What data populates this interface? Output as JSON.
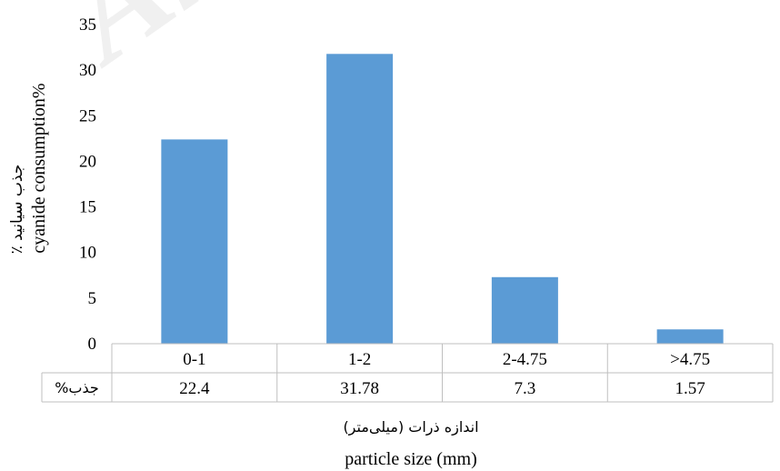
{
  "watermark": "Arc",
  "chart_data": {
    "type": "bar",
    "categories": [
      "0-1",
      "1-2",
      "2-4.75",
      ">4.75"
    ],
    "values": [
      22.4,
      31.78,
      7.3,
      1.57
    ],
    "table_values": [
      "22.4",
      "31.78",
      "7.3",
      "1.57"
    ],
    "table_row_label": "%جذب",
    "ylim": [
      0,
      35
    ],
    "yticks": [
      0,
      5,
      10,
      15,
      20,
      25,
      30,
      35
    ],
    "ylabel_fa": "٪ جذب سیانید",
    "ylabel_en": "cyanide consumption%",
    "xlabel_fa": "اندازه ذرات (میلی‌متر)",
    "xlabel_en": "particle size (mm)",
    "grid": false,
    "bar_color": "#5b9bd5"
  }
}
